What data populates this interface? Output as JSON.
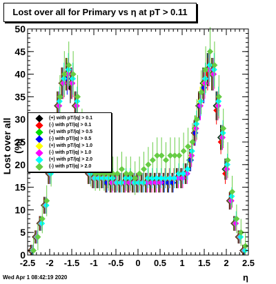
{
  "chart_data": {
    "type": "scatter",
    "title": "Lost over all for Primary vs  η at pT > 0.11",
    "xlabel": "η",
    "ylabel": "Lost over all (%)",
    "xlim": [
      -2.5,
      2.5
    ],
    "ylim": [
      0,
      50
    ],
    "x_ticks": [
      "-2.5",
      "-2",
      "-1.5",
      "-1",
      "-0.5",
      "0",
      "0.5",
      "1",
      "1.5",
      "2",
      "2.5"
    ],
    "y_ticks": [
      "0",
      "5",
      "10",
      "15",
      "20",
      "25",
      "30",
      "35",
      "40",
      "45",
      "50"
    ],
    "grid": false,
    "legend_position": "left",
    "eta": [
      -2.4,
      -2.3,
      -2.2,
      -2.1,
      -2.0,
      -1.9,
      -1.8,
      -1.7,
      -1.6,
      -1.5,
      -1.4,
      -1.3,
      -1.2,
      -1.1,
      -1.0,
      -0.9,
      -0.8,
      -0.7,
      -0.6,
      -0.5,
      -0.4,
      -0.3,
      -0.2,
      -0.1,
      0.0,
      0.1,
      0.2,
      0.3,
      0.4,
      0.5,
      0.6,
      0.7,
      0.8,
      0.9,
      1.0,
      1.1,
      1.2,
      1.3,
      1.4,
      1.5,
      1.6,
      1.7,
      1.8,
      1.9,
      2.0,
      2.1,
      2.2,
      2.3,
      2.4
    ],
    "series": [
      {
        "name": "(+) with pT/|q| > 0.1",
        "color": "#000000",
        "values": [
          1,
          4,
          7,
          11,
          18,
          25,
          33,
          38,
          40,
          37,
          33,
          26,
          21,
          18,
          17,
          17,
          17,
          16,
          16,
          16,
          16,
          16,
          16,
          16,
          16,
          16,
          16,
          16,
          16,
          16,
          16,
          16,
          16,
          17,
          17,
          18,
          21,
          27,
          33,
          38,
          41,
          40,
          33,
          26,
          19,
          12,
          7,
          4,
          1
        ]
      },
      {
        "name": "(-) with pT/|q| > 0.1",
        "color": "#ff0000",
        "values": [
          1,
          4,
          7,
          11,
          18,
          25,
          33,
          38,
          40,
          38,
          33,
          26,
          21,
          18,
          17,
          17,
          17,
          16,
          16,
          16,
          16,
          16,
          16,
          16,
          16,
          16,
          16,
          16,
          16,
          16,
          16,
          16,
          16,
          17,
          17,
          18,
          21,
          27,
          33,
          37,
          40,
          40,
          32,
          25,
          18,
          12,
          7,
          4,
          1
        ]
      },
      {
        "name": "(+) with pT/|q| > 0.5",
        "color": "#00dd00",
        "values": [
          1,
          4,
          7,
          11,
          18,
          25,
          33,
          38,
          40,
          38,
          33,
          27,
          21,
          18,
          17,
          17,
          17,
          16,
          16,
          16,
          16,
          16,
          16,
          16,
          16,
          16,
          16,
          16,
          16,
          16,
          16,
          16,
          16,
          17,
          17,
          18,
          21,
          28,
          33,
          38,
          41,
          40,
          33,
          26,
          19,
          12,
          7,
          4,
          1
        ]
      },
      {
        "name": "(-) with pT/|q| > 0.5",
        "color": "#0000ff",
        "values": [
          1,
          4,
          7,
          11,
          18,
          25,
          33,
          38,
          39,
          38,
          33,
          26,
          21,
          18,
          17,
          17,
          17,
          16,
          16,
          16,
          16,
          16,
          16,
          16,
          16,
          16,
          16,
          16,
          16,
          16,
          16,
          16,
          16,
          17,
          17,
          18,
          21,
          27,
          33,
          37,
          41,
          40,
          33,
          26,
          19,
          12,
          7,
          4,
          1
        ]
      },
      {
        "name": "(+) with pT/|q| > 1.0",
        "color": "#ffff00",
        "values": [
          1,
          4,
          7,
          11,
          18,
          25,
          33,
          38,
          40,
          38,
          33,
          27,
          21,
          18,
          17,
          17,
          17,
          17,
          16,
          16,
          16,
          16,
          16,
          16,
          16,
          16,
          16,
          16,
          16,
          16,
          17,
          17,
          17,
          17,
          17,
          18,
          22,
          28,
          34,
          38,
          41,
          40,
          33,
          26,
          19,
          12,
          7,
          4,
          1
        ]
      },
      {
        "name": "(-) with pT/|q| > 1.0",
        "color": "#ff00ff",
        "values": [
          1,
          4,
          7,
          11,
          18,
          25,
          33,
          38,
          40,
          38,
          33,
          27,
          21,
          18,
          17,
          17,
          17,
          17,
          16,
          16,
          16,
          16,
          16,
          16,
          16,
          16,
          16,
          16,
          16,
          16,
          17,
          17,
          17,
          17,
          17,
          18,
          22,
          28,
          33,
          38,
          41,
          40,
          33,
          26,
          19,
          12,
          7,
          4,
          1
        ]
      },
      {
        "name": "(+) with pT/|q| > 2.0",
        "color": "#00ffff",
        "values": [
          1,
          4,
          7,
          11,
          18,
          26,
          34,
          39,
          41,
          39,
          34,
          27,
          22,
          18,
          17,
          17,
          17,
          17,
          17,
          16,
          16,
          17,
          17,
          16,
          16,
          16,
          17,
          17,
          17,
          17,
          17,
          17,
          17,
          18,
          18,
          19,
          23,
          29,
          34,
          39,
          42,
          41,
          34,
          27,
          20,
          13,
          8,
          4,
          1
        ]
      },
      {
        "name": "(-) with pT/|q| > 2.0",
        "color": "#66cc44",
        "values": [
          1,
          4,
          8,
          12,
          19,
          27,
          35,
          40,
          42,
          40,
          35,
          28,
          23,
          19,
          18,
          18,
          18,
          18,
          18,
          18,
          19,
          18,
          18,
          17,
          18,
          19,
          20,
          21,
          22,
          22,
          21,
          22,
          22,
          22,
          23,
          24,
          25,
          30,
          36,
          41,
          45,
          42,
          35,
          28,
          21,
          14,
          8,
          5,
          2
        ]
      }
    ]
  },
  "footer": {
    "date": "Wed Apr  1 08:42:19 2020"
  }
}
